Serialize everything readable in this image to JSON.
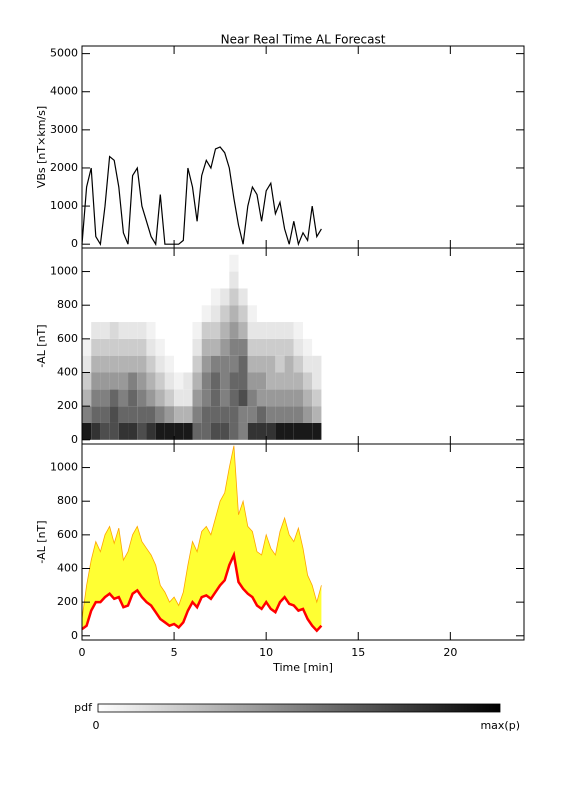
{
  "chart_data": [
    {
      "type": "line",
      "title": "Near Real Time AL Forecast",
      "ylabel": "VBs [nT×km/s]",
      "xlim": [
        0,
        24
      ],
      "xticks": [
        0,
        5,
        10,
        15,
        20
      ],
      "show_xtick_labels": false,
      "ylim": [
        -100,
        5200
      ],
      "yticks": [
        0,
        1000,
        2000,
        3000,
        4000,
        5000
      ],
      "x": [
        0,
        0.25,
        0.5,
        0.75,
        1,
        1.25,
        1.5,
        1.75,
        2,
        2.25,
        2.5,
        2.75,
        3,
        3.25,
        3.5,
        3.75,
        4,
        4.25,
        4.5,
        4.75,
        5,
        5.25,
        5.5,
        5.75,
        6,
        6.25,
        6.5,
        6.75,
        7,
        7.25,
        7.5,
        7.75,
        8,
        8.25,
        8.5,
        8.75,
        9,
        9.25,
        9.5,
        9.75,
        10,
        10.25,
        10.5,
        10.75,
        11,
        11.25,
        11.5,
        11.75,
        12,
        12.25,
        12.5,
        12.75,
        13
      ],
      "series": [
        {
          "color": "#000000",
          "values": [
            0,
            1500,
            2000,
            200,
            0,
            1000,
            2300,
            2200,
            1500,
            300,
            0,
            1800,
            2000,
            1000,
            600,
            200,
            0,
            1300,
            0,
            0,
            0,
            0,
            100,
            2000,
            1500,
            600,
            1800,
            2200,
            2000,
            2500,
            2550,
            2400,
            2000,
            1200,
            500,
            0,
            1000,
            1500,
            1300,
            600,
            1400,
            1600,
            800,
            1100,
            400,
            0,
            600,
            0,
            300,
            100,
            1000,
            200,
            400
          ]
        }
      ]
    },
    {
      "type": "heatmap",
      "ylabel": "-AL [nT]",
      "xlim": [
        0,
        24
      ],
      "xticks": [
        0,
        5,
        10,
        15,
        20
      ],
      "show_xtick_labels": false,
      "ylim": [
        -25,
        1140
      ],
      "yticks": [
        0,
        200,
        400,
        600,
        800,
        1000
      ],
      "x_edges": [
        0,
        0.5,
        1,
        1.5,
        2,
        2.5,
        3,
        3.5,
        4,
        4.5,
        5,
        5.5,
        6,
        6.5,
        7,
        7.5,
        8,
        8.5,
        9,
        9.5,
        10,
        10.5,
        11,
        11.5,
        12,
        12.5,
        13
      ],
      "y_edges": [
        0,
        100,
        200,
        300,
        400,
        500,
        600,
        700,
        800,
        900,
        1000,
        1100
      ],
      "z": [
        [
          0.9,
          0.8,
          0.7,
          0.7,
          0.8,
          0.8,
          0.7,
          0.8,
          0.9,
          0.9,
          0.9,
          0.9,
          0.6,
          0.6,
          0.7,
          0.7,
          0.6,
          0.5,
          0.8,
          0.8,
          0.8,
          0.9,
          0.9,
          0.9,
          0.9,
          0.9
        ],
        [
          0.5,
          0.6,
          0.6,
          0.7,
          0.6,
          0.6,
          0.6,
          0.6,
          0.5,
          0.4,
          0.3,
          0.3,
          0.5,
          0.6,
          0.6,
          0.6,
          0.6,
          0.5,
          0.5,
          0.6,
          0.5,
          0.5,
          0.5,
          0.5,
          0.4,
          0.3
        ],
        [
          0.3,
          0.5,
          0.5,
          0.6,
          0.5,
          0.6,
          0.5,
          0.4,
          0.3,
          0.2,
          0.1,
          0.1,
          0.4,
          0.5,
          0.6,
          0.5,
          0.6,
          0.7,
          0.5,
          0.4,
          0.4,
          0.4,
          0.4,
          0.4,
          0.3,
          0.2
        ],
        [
          0.2,
          0.4,
          0.4,
          0.4,
          0.4,
          0.5,
          0.4,
          0.3,
          0.2,
          0.1,
          0.05,
          0.1,
          0.3,
          0.5,
          0.6,
          0.5,
          0.6,
          0.6,
          0.4,
          0.4,
          0.3,
          0.3,
          0.3,
          0.3,
          0.2,
          0.1
        ],
        [
          0.1,
          0.3,
          0.3,
          0.3,
          0.3,
          0.3,
          0.3,
          0.2,
          0.1,
          0.05,
          0,
          0,
          0.2,
          0.4,
          0.5,
          0.5,
          0.5,
          0.6,
          0.3,
          0.3,
          0.3,
          0.2,
          0.3,
          0.2,
          0.1,
          0.1
        ],
        [
          0.05,
          0.2,
          0.2,
          0.2,
          0.2,
          0.2,
          0.2,
          0.1,
          0.05,
          0,
          0,
          0,
          0.1,
          0.3,
          0.3,
          0.4,
          0.5,
          0.5,
          0.2,
          0.2,
          0.2,
          0.2,
          0.2,
          0.1,
          0.05,
          0
        ],
        [
          0,
          0.1,
          0.1,
          0.15,
          0.1,
          0.1,
          0.1,
          0.05,
          0,
          0,
          0,
          0,
          0.05,
          0.2,
          0.2,
          0.3,
          0.4,
          0.3,
          0.1,
          0.1,
          0.1,
          0.1,
          0.1,
          0.05,
          0,
          0
        ],
        [
          0,
          0,
          0,
          0,
          0,
          0,
          0,
          0,
          0,
          0,
          0,
          0,
          0,
          0.05,
          0.1,
          0.2,
          0.3,
          0.2,
          0.05,
          0,
          0,
          0,
          0,
          0,
          0,
          0
        ],
        [
          0,
          0,
          0,
          0,
          0,
          0,
          0,
          0,
          0,
          0,
          0,
          0,
          0,
          0,
          0.05,
          0.1,
          0.2,
          0.1,
          0,
          0,
          0,
          0,
          0,
          0,
          0,
          0
        ],
        [
          0,
          0,
          0,
          0,
          0,
          0,
          0,
          0,
          0,
          0,
          0,
          0,
          0,
          0,
          0,
          0,
          0.1,
          0,
          0,
          0,
          0,
          0,
          0,
          0,
          0,
          0
        ],
        [
          0,
          0,
          0,
          0,
          0,
          0,
          0,
          0,
          0,
          0,
          0,
          0,
          0,
          0,
          0,
          0,
          0.05,
          0,
          0,
          0,
          0,
          0,
          0,
          0,
          0,
          0
        ]
      ],
      "colorbar": {
        "label": "pdf",
        "min": 0,
        "max_label": "max(p)"
      }
    },
    {
      "type": "band",
      "ylabel": "-AL [nT]",
      "xlabel": "Time [min]",
      "xlim": [
        0,
        24
      ],
      "xticks": [
        0,
        5,
        10,
        15,
        20
      ],
      "show_xtick_labels": true,
      "ylim": [
        -25,
        1140
      ],
      "yticks": [
        0,
        200,
        400,
        600,
        800,
        1000
      ],
      "band_fill": "#ffff33",
      "x": [
        0,
        0.25,
        0.5,
        0.75,
        1,
        1.25,
        1.5,
        1.75,
        2,
        2.25,
        2.5,
        2.75,
        3,
        3.25,
        3.5,
        3.75,
        4,
        4.25,
        4.5,
        4.75,
        5,
        5.25,
        5.5,
        5.75,
        6,
        6.25,
        6.5,
        6.75,
        7,
        7.25,
        7.5,
        7.75,
        8,
        8.25,
        8.5,
        8.75,
        9,
        9.25,
        9.5,
        9.75,
        10,
        10.25,
        10.5,
        10.75,
        11,
        11.25,
        11.5,
        11.75,
        12,
        12.25,
        12.5,
        12.75,
        13
      ],
      "series": [
        {
          "color": "#ffa500",
          "values": [
            100,
            300,
            450,
            560,
            500,
            600,
            650,
            550,
            640,
            450,
            500,
            600,
            650,
            560,
            520,
            480,
            420,
            300,
            260,
            200,
            230,
            180,
            260,
            420,
            560,
            500,
            620,
            650,
            600,
            700,
            800,
            850,
            1000,
            1130,
            720,
            800,
            650,
            620,
            500,
            480,
            600,
            520,
            480,
            620,
            700,
            600,
            560,
            640,
            520,
            360,
            300,
            200,
            300
          ]
        },
        {
          "color": "#ff0000",
          "values": [
            40,
            60,
            150,
            200,
            200,
            230,
            250,
            220,
            230,
            170,
            180,
            250,
            270,
            230,
            200,
            180,
            140,
            100,
            80,
            60,
            70,
            50,
            80,
            150,
            200,
            170,
            230,
            240,
            220,
            260,
            300,
            330,
            420,
            480,
            320,
            280,
            250,
            230,
            180,
            160,
            200,
            160,
            140,
            200,
            230,
            190,
            180,
            150,
            160,
            100,
            60,
            30,
            60
          ]
        }
      ]
    }
  ]
}
